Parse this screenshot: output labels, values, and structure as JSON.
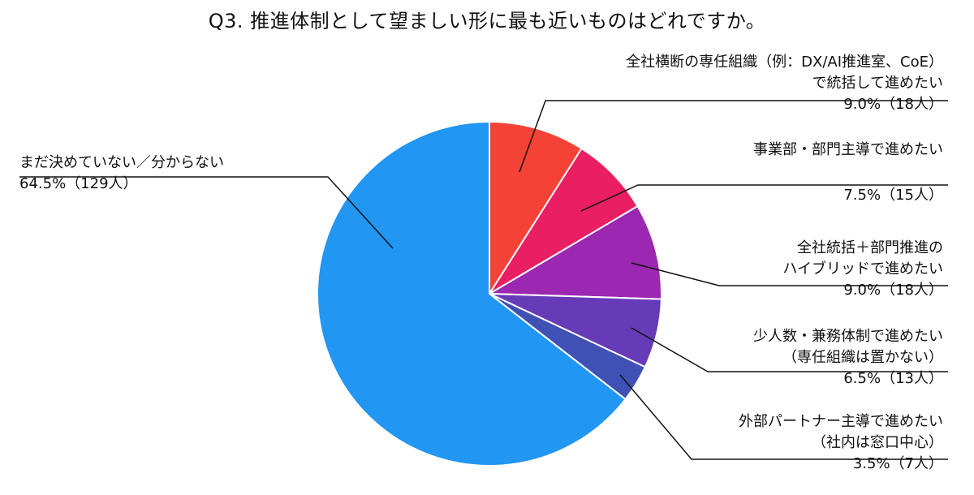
{
  "chart_data": {
    "type": "pie",
    "title": "Q3. 推進体制として望ましい形に最も近いものはどれですか。",
    "slices": [
      {
        "lines": [
          "全社横断の専任組織（例：DX/AI推進室、CoE）",
          "で統括して進めたい"
        ],
        "value_label": "9.0%（18人）",
        "percent": 9.0,
        "count": 18,
        "color": "#F44336"
      },
      {
        "lines": [
          "事業部・部門主導で進めたい"
        ],
        "value_label": "7.5%（15人）",
        "percent": 7.5,
        "count": 15,
        "color": "#E91E63"
      },
      {
        "lines": [
          "全社統括＋部門推進の",
          "ハイブリッドで進めたい"
        ],
        "value_label": "9.0%（18人）",
        "percent": 9.0,
        "count": 18,
        "color": "#9C27B0"
      },
      {
        "lines": [
          "少人数・兼務体制で進めたい",
          "（専任組織は置かない）"
        ],
        "value_label": "6.5%（13人）",
        "percent": 6.5,
        "count": 13,
        "color": "#673AB7"
      },
      {
        "lines": [
          "外部パートナー主導で進めたい",
          "（社内は窓口中心）"
        ],
        "value_label": "3.5%（7人）",
        "percent": 3.5,
        "count": 7,
        "color": "#3F51B5"
      },
      {
        "lines": [
          "まだ決めていない／分からない"
        ],
        "value_label": "64.5%（129人）",
        "percent": 64.5,
        "count": 129,
        "color": "#2196F3"
      }
    ]
  }
}
